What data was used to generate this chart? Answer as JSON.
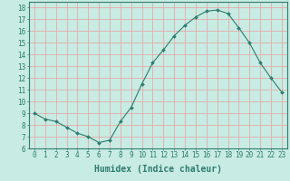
{
  "x": [
    0,
    1,
    2,
    3,
    4,
    5,
    6,
    7,
    8,
    9,
    10,
    11,
    12,
    13,
    14,
    15,
    16,
    17,
    18,
    19,
    20,
    21,
    22,
    23
  ],
  "y": [
    9,
    8.5,
    8.3,
    7.8,
    7.3,
    7.0,
    6.5,
    6.7,
    8.3,
    9.5,
    11.5,
    13.3,
    14.4,
    15.6,
    16.5,
    17.2,
    17.7,
    17.8,
    17.5,
    16.3,
    15.0,
    13.3,
    12.0,
    10.8
  ],
  "line_color": "#2e7d6e",
  "marker": "D",
  "marker_size": 2.0,
  "bg_color": "#c8ebe3",
  "grid_color": "#e8a0a0",
  "xlabel": "Humidex (Indice chaleur)",
  "xlim": [
    -0.5,
    23.5
  ],
  "ylim": [
    6,
    18.5
  ],
  "yticks": [
    6,
    7,
    8,
    9,
    10,
    11,
    12,
    13,
    14,
    15,
    16,
    17,
    18
  ],
  "xticks": [
    0,
    1,
    2,
    3,
    4,
    5,
    6,
    7,
    8,
    9,
    10,
    11,
    12,
    13,
    14,
    15,
    16,
    17,
    18,
    19,
    20,
    21,
    22,
    23
  ],
  "tick_label_fontsize": 5.5,
  "xlabel_fontsize": 7.0,
  "axis_color": "#2e7d6e",
  "spine_color": "#2e7d6e"
}
